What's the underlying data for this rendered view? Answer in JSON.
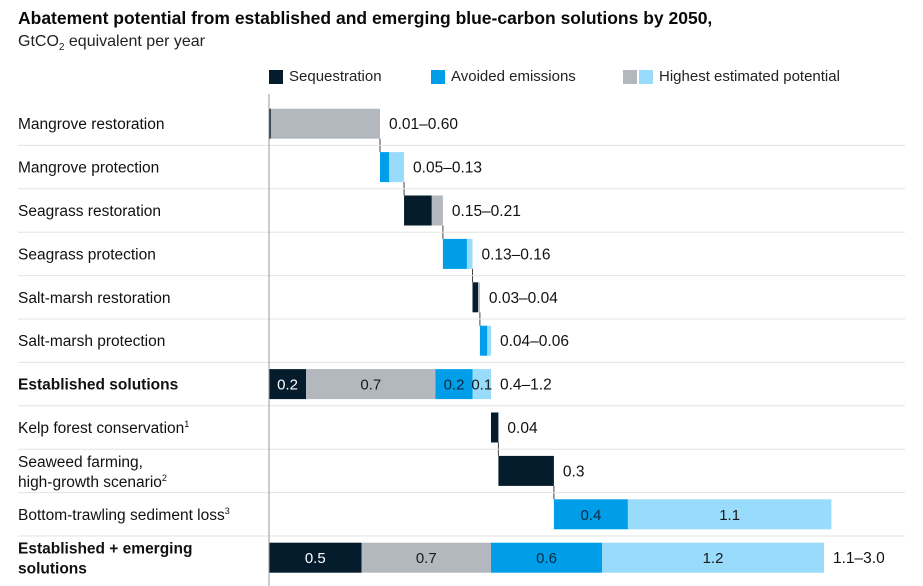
{
  "title": "Abatement potential from established and emerging blue-carbon solutions by 2050,",
  "subtitle_pre": "GtCO",
  "subtitle_sub": "2",
  "subtitle_post": " equivalent per year",
  "legend": {
    "sequestration": "Sequestration",
    "avoided": "Avoided emissions",
    "highest": "Highest estimated potential"
  },
  "colors": {
    "sequestration": "#051c2c",
    "sequestration_high": "#b3b8bf",
    "avoided": "#009ee8",
    "avoided_high": "#99dbfa",
    "gridline": "#e3e3e3",
    "axis": "#9a9a9a",
    "connector": "#444444"
  },
  "chart_data": {
    "type": "bar",
    "subtype": "stacked-waterfall-horizontal",
    "unit": "GtCO2 equivalent per year",
    "xlim": [
      0,
      3.2
    ],
    "rows": [
      {
        "label": "Mangrove restoration",
        "bold": false,
        "range": "0.01–0.60",
        "offset": 0.0,
        "segments": [
          {
            "kind": "sequestration",
            "value": 0.01
          },
          {
            "kind": "sequestration_high",
            "value": 0.59
          }
        ]
      },
      {
        "label": "Mangrove protection",
        "bold": false,
        "range": "0.05–0.13",
        "offset": 0.6,
        "segments": [
          {
            "kind": "avoided",
            "value": 0.05
          },
          {
            "kind": "avoided_high",
            "value": 0.08
          }
        ]
      },
      {
        "label": "Seagrass restoration",
        "bold": false,
        "range": "0.15–0.21",
        "offset": 0.73,
        "segments": [
          {
            "kind": "sequestration",
            "value": 0.15
          },
          {
            "kind": "sequestration_high",
            "value": 0.06
          }
        ]
      },
      {
        "label": "Seagrass protection",
        "bold": false,
        "range": "0.13–0.16",
        "offset": 0.94,
        "segments": [
          {
            "kind": "avoided",
            "value": 0.13
          },
          {
            "kind": "avoided_high",
            "value": 0.03
          }
        ]
      },
      {
        "label": "Salt-marsh restoration",
        "bold": false,
        "range": "0.03–0.04",
        "offset": 1.1,
        "segments": [
          {
            "kind": "sequestration",
            "value": 0.03
          },
          {
            "kind": "sequestration_high",
            "value": 0.01
          }
        ]
      },
      {
        "label": "Salt-marsh protection",
        "bold": false,
        "range": "0.04–0.06",
        "offset": 1.14,
        "segments": [
          {
            "kind": "avoided",
            "value": 0.04
          },
          {
            "kind": "avoided_high",
            "value": 0.02
          }
        ]
      },
      {
        "label": "Established solutions",
        "bold": true,
        "range": "0.4–1.2",
        "offset": 0.0,
        "segments": [
          {
            "kind": "sequestration",
            "value": 0.2,
            "label": "0.2"
          },
          {
            "kind": "sequestration_high",
            "value": 0.7,
            "label": "0.7"
          },
          {
            "kind": "avoided",
            "value": 0.2,
            "label": "0.2"
          },
          {
            "kind": "avoided_high",
            "value": 0.1,
            "label": "0.1"
          }
        ]
      },
      {
        "label": "Kelp forest conservation",
        "sup": "1",
        "bold": false,
        "range": "0.04",
        "offset": 1.2,
        "segments": [
          {
            "kind": "sequestration",
            "value": 0.04
          }
        ]
      },
      {
        "label": "Seaweed farming,",
        "label2": "high-growth scenario",
        "sup": "2",
        "bold": false,
        "range": "0.3",
        "offset": 1.24,
        "segments": [
          {
            "kind": "sequestration",
            "value": 0.3
          }
        ]
      },
      {
        "label": "Bottom-trawling sediment loss",
        "sup": "3",
        "bold": false,
        "range": "",
        "offset": 1.54,
        "segments": [
          {
            "kind": "avoided",
            "value": 0.4,
            "label": "0.4"
          },
          {
            "kind": "avoided_high",
            "value": 1.1,
            "label": "1.1"
          }
        ]
      },
      {
        "label": "Established + emerging",
        "label2": "solutions",
        "bold": true,
        "range": "1.1–3.0",
        "offset": 0.0,
        "segments": [
          {
            "kind": "sequestration",
            "value": 0.5,
            "label": "0.5"
          },
          {
            "kind": "sequestration_high",
            "value": 0.7,
            "label": "0.7"
          },
          {
            "kind": "avoided",
            "value": 0.6,
            "label": "0.6"
          },
          {
            "kind": "avoided_high",
            "value": 1.2,
            "label": "1.2"
          }
        ]
      }
    ]
  }
}
